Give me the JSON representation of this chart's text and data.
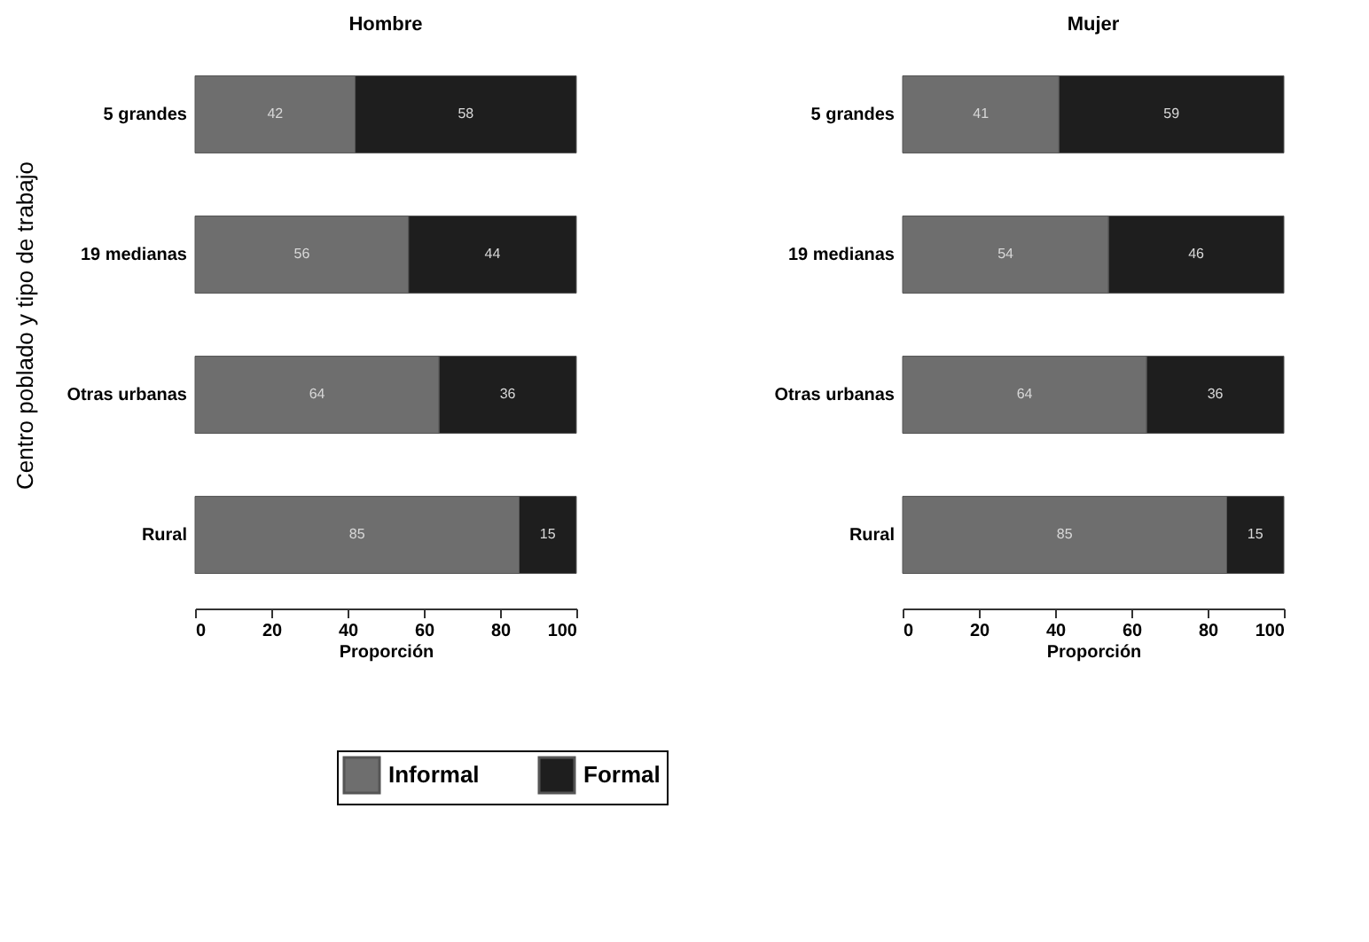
{
  "chart_data": [
    {
      "type": "bar",
      "orientation": "horizontal",
      "stacked": true,
      "title": "Hombre",
      "xlabel": "Proporción",
      "ylabel": "Centro poblado y tipo de trabajo",
      "categories": [
        "5 grandes",
        "19 medianas",
        "Otras urbanas",
        "Rural"
      ],
      "series": [
        {
          "name": "Informal",
          "color": "#6e6e6e",
          "values": [
            42,
            56,
            64,
            85
          ]
        },
        {
          "name": "Formal",
          "color": "#1e1e1e",
          "values": [
            58,
            44,
            36,
            15
          ]
        }
      ],
      "xlim": [
        0,
        100
      ],
      "xticks": [
        0,
        20,
        40,
        60,
        80,
        100
      ],
      "data_labels": true,
      "legend": "bottom"
    },
    {
      "type": "bar",
      "orientation": "horizontal",
      "stacked": true,
      "title": "Mujer",
      "xlabel": "Proporción",
      "categories": [
        "5 grandes",
        "19 medianas",
        "Otras urbanas",
        "Rural"
      ],
      "series": [
        {
          "name": "Informal",
          "color": "#6e6e6e",
          "values": [
            41,
            54,
            64,
            85
          ]
        },
        {
          "name": "Formal",
          "color": "#1e1e1e",
          "values": [
            59,
            46,
            36,
            15
          ]
        }
      ],
      "xlim": [
        0,
        100
      ],
      "xticks": [
        0,
        20,
        40,
        60,
        80,
        100
      ],
      "data_labels": true,
      "legend": "bottom"
    }
  ]
}
